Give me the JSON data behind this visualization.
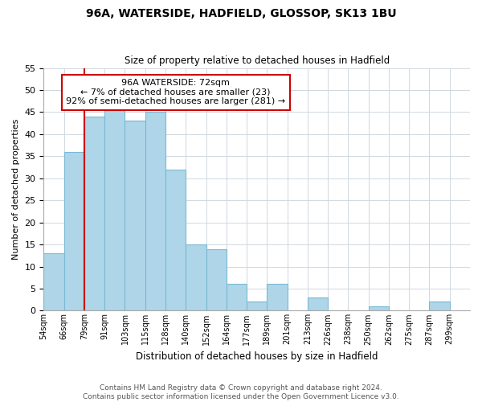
{
  "title": "96A, WATERSIDE, HADFIELD, GLOSSOP, SK13 1BU",
  "subtitle": "Size of property relative to detached houses in Hadfield",
  "xlabel": "Distribution of detached houses by size in Hadfield",
  "ylabel": "Number of detached properties",
  "bin_labels": [
    "54sqm",
    "66sqm",
    "79sqm",
    "91sqm",
    "103sqm",
    "115sqm",
    "128sqm",
    "140sqm",
    "152sqm",
    "164sqm",
    "177sqm",
    "189sqm",
    "201sqm",
    "213sqm",
    "226sqm",
    "238sqm",
    "250sqm",
    "262sqm",
    "275sqm",
    "287sqm",
    "299sqm"
  ],
  "bar_heights": [
    13,
    36,
    44,
    46,
    43,
    45,
    32,
    15,
    14,
    6,
    2,
    6,
    0,
    3,
    0,
    0,
    1,
    0,
    0,
    2,
    0
  ],
  "bar_color": "#aed6e8",
  "bar_edge_color": "#7ab8d4",
  "vline_x": 2,
  "vline_color": "#cc0000",
  "ylim": [
    0,
    55
  ],
  "yticks": [
    0,
    5,
    10,
    15,
    20,
    25,
    30,
    35,
    40,
    45,
    50,
    55
  ],
  "annotation_title": "96A WATERSIDE: 72sqm",
  "annotation_line1": "← 7% of detached houses are smaller (23)",
  "annotation_line2": "92% of semi-detached houses are larger (281) →",
  "annotation_box_color": "#ffffff",
  "annotation_box_edge_color": "#cc0000",
  "footnote1": "Contains HM Land Registry data © Crown copyright and database right 2024.",
  "footnote2": "Contains public sector information licensed under the Open Government Licence v3.0.",
  "background_color": "#ffffff",
  "grid_color": "#d0d8e0"
}
